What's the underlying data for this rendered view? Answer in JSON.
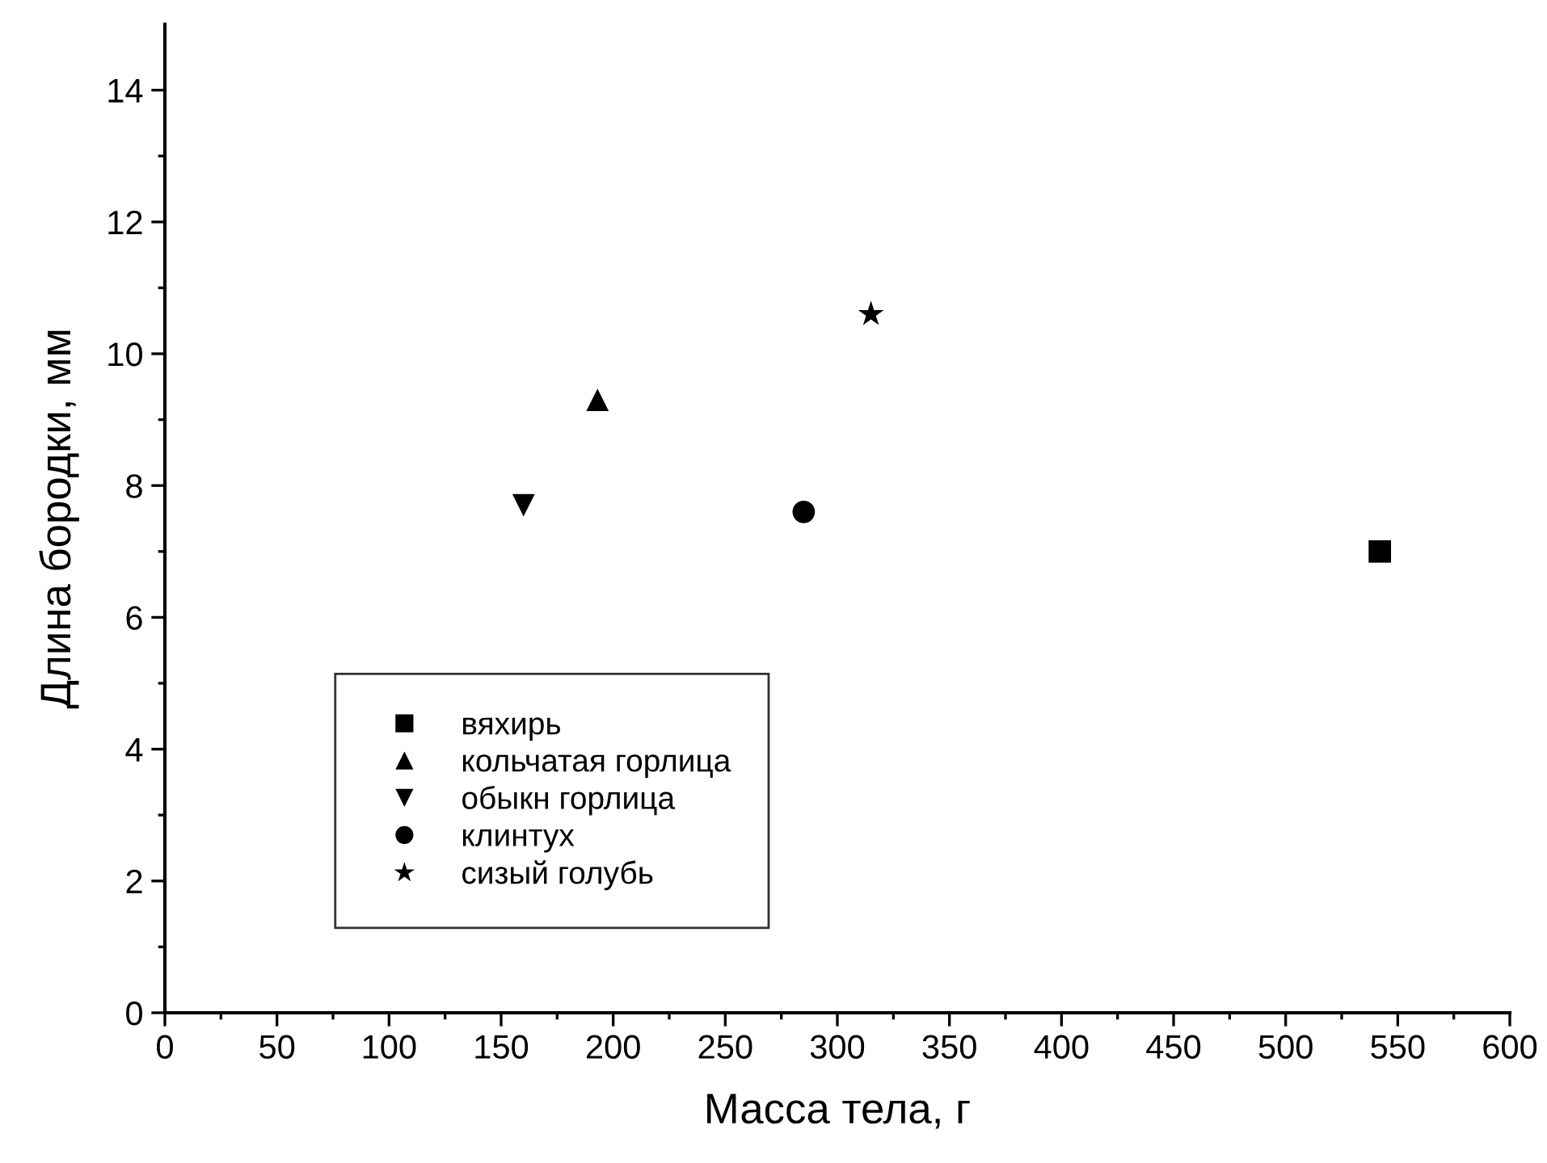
{
  "chart_data": {
    "type": "scatter",
    "xlabel": "Масса тела, г",
    "ylabel": "Длина бородки, мм",
    "series": [
      {
        "name": "вяхирь",
        "color": "#000000",
        "marker": "square",
        "x": [
          542
        ],
        "values": [
          7.0
        ]
      },
      {
        "name": "кольчатая горлица",
        "color": "#000000",
        "marker": "triangle",
        "x": [
          193
        ],
        "values": [
          9.3
        ]
      },
      {
        "name": "обыкн горлица",
        "color": "#000000",
        "marker": "triangle_down",
        "x": [
          160
        ],
        "values": [
          7.7
        ]
      },
      {
        "name": "клинтух",
        "color": "#000000",
        "marker": "circle",
        "x": [
          285
        ],
        "values": [
          7.6
        ]
      },
      {
        "name": "сизый голубь",
        "color": "#000000",
        "marker": "star",
        "x": [
          315
        ],
        "values": [
          10.6
        ]
      }
    ],
    "xlim": [
      0,
      600
    ],
    "ylim": [
      0,
      15
    ],
    "xticks": [
      0,
      {
        "value": 25,
        "label": null
      },
      50,
      {
        "value": 75,
        "label": null
      },
      100,
      {
        "value": 125,
        "label": null
      },
      150,
      {
        "value": 175,
        "label": null
      },
      200,
      {
        "value": 225,
        "label": null
      },
      250,
      {
        "value": 275,
        "label": null
      },
      300,
      {
        "value": 325,
        "label": null
      },
      350,
      {
        "value": 375,
        "label": null
      },
      400,
      {
        "value": 425,
        "label": null
      },
      450,
      {
        "value": 475,
        "label": null
      },
      500,
      {
        "value": 525,
        "label": null
      },
      550,
      {
        "value": 575,
        "label": null
      },
      600
    ],
    "yticks": [
      0,
      {
        "value": 1,
        "label": null
      },
      2,
      {
        "value": 3,
        "label": null
      },
      4,
      {
        "value": 5,
        "label": null
      },
      6,
      {
        "value": 7,
        "label": null
      },
      8,
      {
        "value": 9,
        "label": null
      },
      10,
      {
        "value": 11,
        "label": null
      },
      12,
      {
        "value": 13,
        "label": null
      },
      14
    ],
    "grid": false,
    "legend": "bottom left"
  }
}
